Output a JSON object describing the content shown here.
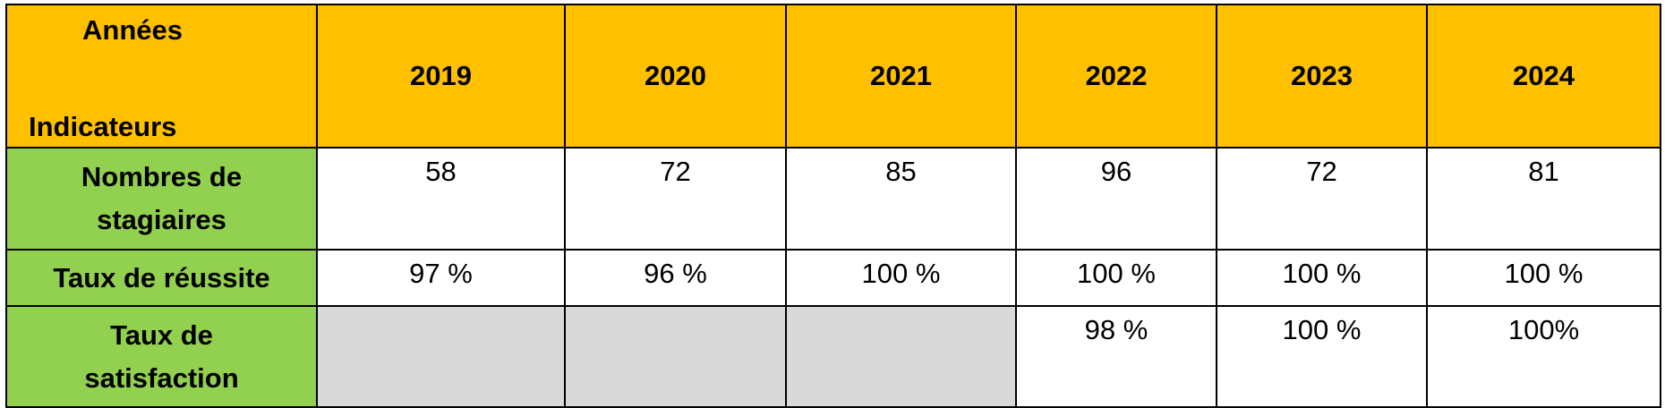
{
  "table": {
    "corner": {
      "top": "Années",
      "bottom": "Indicateurs"
    },
    "years": [
      "2019",
      "2020",
      "2021",
      "2022",
      "2023",
      "2024"
    ],
    "rows": [
      {
        "label": "Nombres de stagiaires",
        "values": [
          58,
          72,
          85,
          96,
          72,
          81
        ]
      },
      {
        "label": "Taux de réussite",
        "values": [
          "97 %",
          "96 %",
          "100 %",
          "100 %",
          "100 %",
          "100 %"
        ]
      },
      {
        "label": "Taux de satisfaction",
        "values": [
          null,
          null,
          null,
          "98 %",
          "100 %",
          "100%"
        ]
      }
    ]
  }
}
